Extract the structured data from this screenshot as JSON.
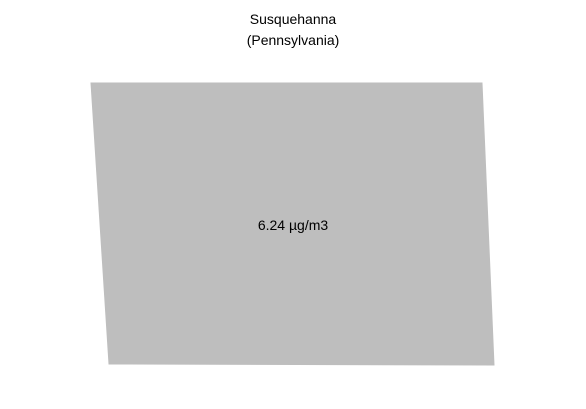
{
  "title": {
    "county": "Susquehanna",
    "state": "(Pennsylvania)"
  },
  "region": {
    "name": "Susquehanna",
    "value_label": "6.24 µg/m3",
    "value": 6.24,
    "unit": "µg/m3",
    "fill_color": "#bebebe"
  }
}
